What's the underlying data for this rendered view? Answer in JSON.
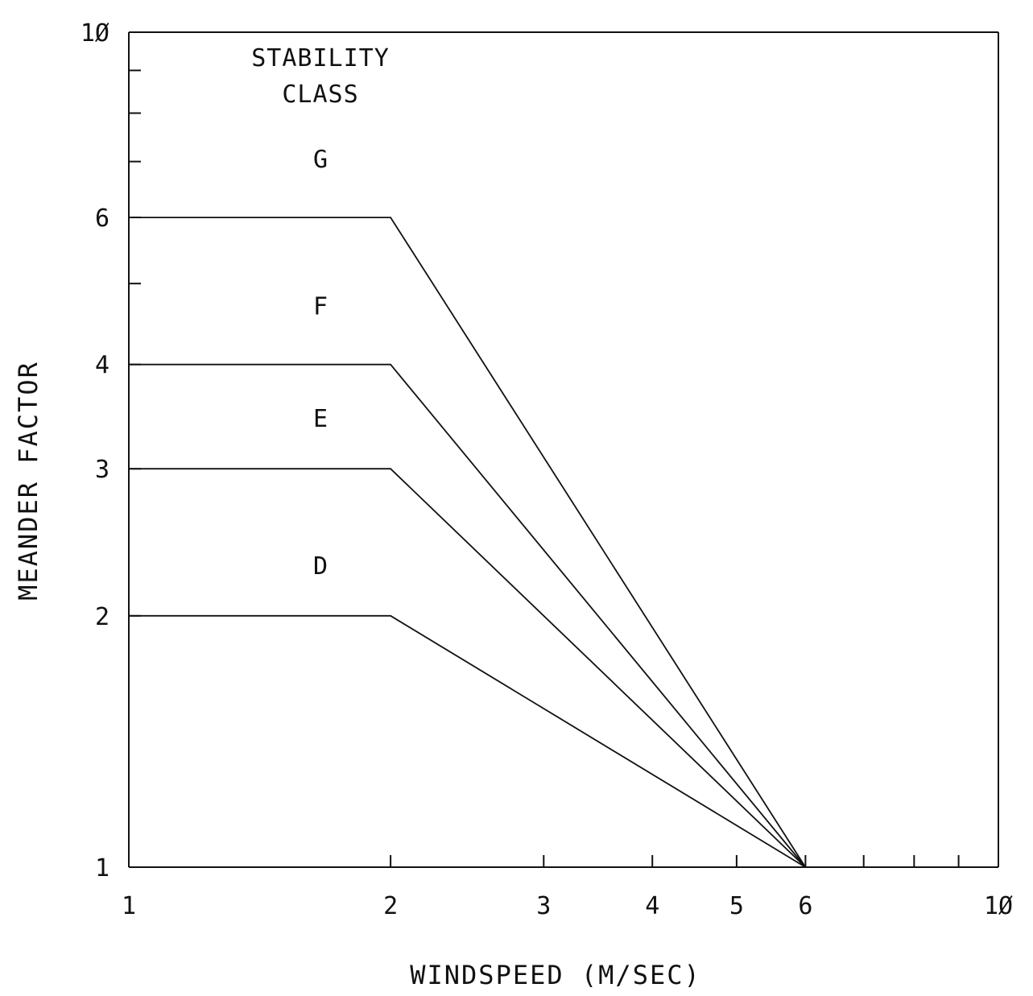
{
  "chart_data": {
    "type": "line",
    "xlabel": "WINDSPEED (M/SEC)",
    "ylabel": "MEANDER FACTOR",
    "xscale": "log",
    "yscale": "log",
    "xlim": [
      1,
      10
    ],
    "ylim": [
      1,
      10
    ],
    "grid": false,
    "x_tick_labels": [
      "1",
      "2",
      "3",
      "4",
      "5",
      "6",
      "1Ø"
    ],
    "x_tick_values": [
      1,
      2,
      3,
      4,
      5,
      6,
      10
    ],
    "x_minor_ticks": [
      7,
      8,
      9
    ],
    "y_tick_labels": [
      "1",
      "2",
      "3",
      "4",
      "6",
      "1Ø"
    ],
    "y_tick_values": [
      1,
      2,
      3,
      4,
      6,
      10
    ],
    "y_minor_ticks": [
      5,
      7,
      8,
      9
    ],
    "legend": {
      "title_line1": "STABILITY",
      "title_line2": "CLASS",
      "placement": "top-left"
    },
    "series": [
      {
        "name": "D",
        "x": [
          1,
          2,
          6
        ],
        "y": [
          2,
          2,
          1
        ]
      },
      {
        "name": "E",
        "x": [
          1,
          2,
          6
        ],
        "y": [
          3,
          3,
          1
        ]
      },
      {
        "name": "F",
        "x": [
          1,
          2,
          6
        ],
        "y": [
          4,
          4,
          1
        ]
      },
      {
        "name": "G",
        "x": [
          1,
          2,
          6
        ],
        "y": [
          6,
          6,
          1
        ]
      }
    ]
  }
}
